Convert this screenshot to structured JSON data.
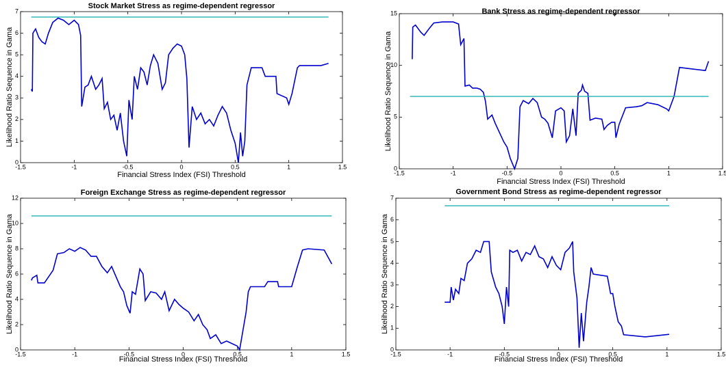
{
  "chart_data": [
    {
      "type": "line",
      "title": "Stock Market Stress as regime-dependent regressor",
      "x_label": "Financial Stress Index (FSI) Threshold",
      "y_label": "Likelihood Ratio Sequence in Gama",
      "xlim": [
        -1.5,
        1.5
      ],
      "xticks": [
        -1.5,
        -1,
        -0.5,
        0,
        0.5,
        1,
        1.5
      ],
      "ylim": [
        0,
        7
      ],
      "yticks": [
        0,
        1,
        2,
        3,
        4,
        5,
        6,
        7
      ],
      "series": [
        {
          "color": "#0000cc",
          "x": [
            -1.4,
            -1.39,
            -1.385,
            -1.36,
            -1.33,
            -1.3,
            -1.27,
            -1.24,
            -1.2,
            -1.15,
            -1.1,
            -1.05,
            -1.0,
            -0.96,
            -0.94,
            -0.93,
            -0.9,
            -0.87,
            -0.84,
            -0.8,
            -0.77,
            -0.74,
            -0.72,
            -0.69,
            -0.66,
            -0.63,
            -0.6,
            -0.57,
            -0.54,
            -0.51,
            -0.49,
            -0.46,
            -0.44,
            -0.41,
            -0.38,
            -0.35,
            -0.32,
            -0.29,
            -0.26,
            -0.22,
            -0.18,
            -0.15,
            -0.12,
            -0.08,
            -0.04,
            0.0,
            0.03,
            0.05,
            0.07,
            0.1,
            0.14,
            0.18,
            0.22,
            0.26,
            0.3,
            0.34,
            0.38,
            0.42,
            0.46,
            0.5,
            0.52,
            0.53,
            0.55,
            0.57,
            0.59,
            0.61,
            0.65,
            0.75,
            0.78,
            0.88,
            0.89,
            0.98,
            1.0,
            1.03,
            1.08,
            1.1,
            1.3,
            1.37
          ],
          "values": [
            3.4,
            3.3,
            6.0,
            6.2,
            5.8,
            5.6,
            5.5,
            6.0,
            6.5,
            6.7,
            6.6,
            6.4,
            6.6,
            6.4,
            5.9,
            2.6,
            3.5,
            3.6,
            4.0,
            3.4,
            3.6,
            3.9,
            2.5,
            2.8,
            2.0,
            2.2,
            1.5,
            2.3,
            1.0,
            0.3,
            2.9,
            2.0,
            4.0,
            3.4,
            4.4,
            4.2,
            3.6,
            4.5,
            5.0,
            4.6,
            3.4,
            3.7,
            5.0,
            5.3,
            5.5,
            5.4,
            5.0,
            3.9,
            0.7,
            2.6,
            2.0,
            2.3,
            1.8,
            2.0,
            1.7,
            2.2,
            2.6,
            2.3,
            1.5,
            0.9,
            0.3,
            0.0,
            1.4,
            0.3,
            1.0,
            3.6,
            4.4,
            4.4,
            4.0,
            4.0,
            3.2,
            3.0,
            2.7,
            3.2,
            4.4,
            4.5,
            4.5,
            4.6
          ]
        },
        {
          "color": "#20b2b2",
          "x": [
            -1.4,
            1.37
          ],
          "values": [
            6.75,
            6.75
          ]
        }
      ]
    },
    {
      "type": "line",
      "title": "Bank Stress as regime-dependent regressor",
      "x_label": "Financial Stress Index (FSI) Threshold",
      "y_label": "Likelihood Ratio Sequence in Gama",
      "xlim": [
        -1.5,
        1.5
      ],
      "xticks": [
        -1.5,
        -1,
        -0.5,
        0,
        0.5,
        1,
        1.5
      ],
      "ylim": [
        0,
        15
      ],
      "yticks": [
        0,
        5,
        10,
        15
      ],
      "series": [
        {
          "color": "#0000cc",
          "x": [
            -1.38,
            -1.375,
            -1.35,
            -1.3,
            -1.27,
            -1.22,
            -1.18,
            -1.1,
            -1.0,
            -0.95,
            -0.93,
            -0.9,
            -0.89,
            -0.85,
            -0.82,
            -0.78,
            -0.75,
            -0.72,
            -0.7,
            -0.68,
            -0.64,
            -0.61,
            -0.57,
            -0.53,
            -0.5,
            -0.47,
            -0.45,
            -0.43,
            -0.4,
            -0.38,
            -0.35,
            -0.3,
            -0.26,
            -0.22,
            -0.18,
            -0.15,
            -0.12,
            -0.08,
            -0.05,
            0.0,
            0.03,
            0.05,
            0.08,
            0.11,
            0.14,
            0.16,
            0.19,
            0.2,
            0.22,
            0.25,
            0.27,
            0.32,
            0.38,
            0.4,
            0.43,
            0.47,
            0.5,
            0.51,
            0.54,
            0.6,
            0.7,
            0.75,
            0.8,
            0.9,
            0.98,
            1.0,
            1.05,
            1.1,
            1.34,
            1.37
          ],
          "values": [
            10.6,
            13.7,
            13.9,
            13.2,
            12.9,
            13.6,
            14.1,
            14.2,
            14.2,
            14.0,
            12.0,
            12.6,
            8.0,
            8.1,
            7.8,
            7.8,
            7.7,
            7.4,
            6.5,
            4.8,
            5.2,
            4.4,
            3.5,
            2.6,
            2.1,
            1.0,
            0.5,
            0.0,
            1.0,
            6.0,
            6.6,
            6.3,
            6.8,
            6.4,
            5.0,
            4.8,
            4.4,
            3.0,
            5.6,
            5.9,
            5.6,
            2.6,
            3.2,
            5.8,
            3.2,
            7.3,
            7.6,
            8.1,
            7.5,
            7.3,
            4.7,
            4.9,
            4.8,
            3.8,
            4.2,
            4.5,
            4.5,
            3.0,
            4.3,
            5.9,
            6.0,
            6.1,
            6.4,
            6.2,
            5.8,
            5.6,
            7.0,
            9.8,
            9.5,
            10.4
          ]
        },
        {
          "color": "#20b2b2",
          "x": [
            -1.4,
            1.37
          ],
          "values": [
            7.0,
            7.0
          ]
        }
      ]
    },
    {
      "type": "line",
      "title": "Foreign Exchange Stress as regime-dependent regressor",
      "x_label": "Financial Stress Index (FSI) Threshold",
      "y_label": "Likelihood Ratio Sequence in Gama",
      "xlim": [
        -1.5,
        1.5
      ],
      "xticks": [
        -1.5,
        -1,
        -0.5,
        0,
        0.5,
        1,
        1.5
      ],
      "ylim": [
        0,
        12
      ],
      "yticks": [
        0,
        2,
        4,
        6,
        8,
        10,
        12
      ],
      "series": [
        {
          "color": "#0000cc",
          "x": [
            -1.4,
            -1.39,
            -1.35,
            -1.34,
            -1.28,
            -1.24,
            -1.2,
            -1.16,
            -1.1,
            -1.05,
            -1.0,
            -0.95,
            -0.9,
            -0.85,
            -0.8,
            -0.75,
            -0.7,
            -0.66,
            -0.62,
            -0.58,
            -0.55,
            -0.52,
            -0.49,
            -0.47,
            -0.44,
            -0.4,
            -0.37,
            -0.35,
            -0.3,
            -0.25,
            -0.2,
            -0.17,
            -0.13,
            -0.08,
            -0.04,
            0.0,
            0.05,
            0.1,
            0.14,
            0.18,
            0.22,
            0.25,
            0.3,
            0.35,
            0.4,
            0.45,
            0.5,
            0.52,
            0.55,
            0.58,
            0.6,
            0.62,
            0.75,
            0.78,
            0.87,
            0.88,
            1.0,
            1.05,
            1.1,
            1.15,
            1.3,
            1.37
          ],
          "values": [
            5.5,
            5.7,
            5.9,
            5.3,
            5.3,
            5.8,
            6.3,
            7.6,
            7.7,
            8.0,
            7.8,
            8.1,
            7.9,
            7.4,
            7.4,
            6.6,
            6.1,
            6.6,
            5.8,
            5.0,
            4.6,
            3.5,
            2.9,
            4.6,
            4.4,
            6.4,
            6.0,
            3.9,
            4.6,
            4.5,
            4.0,
            4.6,
            3.1,
            4.0,
            3.6,
            3.3,
            3.0,
            2.3,
            2.8,
            2.0,
            1.6,
            0.9,
            1.2,
            0.5,
            0.7,
            0.5,
            0.3,
            0.0,
            1.5,
            3.0,
            4.6,
            5.0,
            5.0,
            5.4,
            5.4,
            5.0,
            5.0,
            6.5,
            7.9,
            8.0,
            7.9,
            6.8
          ]
        },
        {
          "color": "#20b2b2",
          "x": [
            -1.4,
            1.37
          ],
          "values": [
            10.6,
            10.6
          ]
        }
      ]
    },
    {
      "type": "line",
      "title": "Government Bond Stress as regime-dependent regressor",
      "x_label": "Financial Stress Index (FSI) Threshold",
      "y_label": "Likelihood Ratio Sequence in Gama",
      "xlim": [
        -1.5,
        1.5
      ],
      "xticks": [
        -1.5,
        -1,
        -0.5,
        0,
        0.5,
        1,
        1.5
      ],
      "ylim": [
        0,
        7
      ],
      "yticks": [
        0,
        1,
        2,
        3,
        4,
        5,
        6,
        7
      ],
      "series": [
        {
          "color": "#0000cc",
          "x": [
            -1.05,
            -1.0,
            -0.99,
            -0.97,
            -0.95,
            -0.92,
            -0.9,
            -0.87,
            -0.84,
            -0.8,
            -0.76,
            -0.72,
            -0.69,
            -0.64,
            -0.62,
            -0.58,
            -0.55,
            -0.52,
            -0.5,
            -0.48,
            -0.46,
            -0.45,
            -0.42,
            -0.38,
            -0.34,
            -0.3,
            -0.26,
            -0.22,
            -0.18,
            -0.14,
            -0.1,
            -0.06,
            -0.02,
            0.02,
            0.06,
            0.1,
            0.13,
            0.14,
            0.17,
            0.19,
            0.21,
            0.23,
            0.26,
            0.28,
            0.3,
            0.32,
            0.45,
            0.48,
            0.5,
            0.52,
            0.55,
            0.58,
            0.6,
            0.8,
            1.02
          ],
          "values": [
            2.2,
            2.2,
            2.9,
            2.3,
            2.8,
            2.6,
            3.3,
            3.2,
            4.0,
            4.2,
            4.6,
            4.5,
            5.0,
            5.0,
            3.6,
            2.9,
            2.6,
            2.0,
            1.2,
            2.9,
            2.0,
            4.6,
            4.5,
            4.6,
            4.1,
            4.5,
            4.4,
            4.8,
            4.3,
            4.2,
            3.8,
            4.3,
            3.9,
            3.7,
            4.5,
            4.7,
            5.0,
            3.6,
            2.4,
            0.1,
            1.7,
            0.4,
            2.2,
            2.9,
            3.8,
            3.5,
            3.4,
            2.6,
            2.6,
            2.0,
            1.3,
            1.1,
            0.7,
            0.6,
            0.72
          ]
        },
        {
          "color": "#20b2b2",
          "x": [
            -1.05,
            1.02
          ],
          "values": [
            6.65,
            6.65
          ]
        }
      ]
    }
  ]
}
